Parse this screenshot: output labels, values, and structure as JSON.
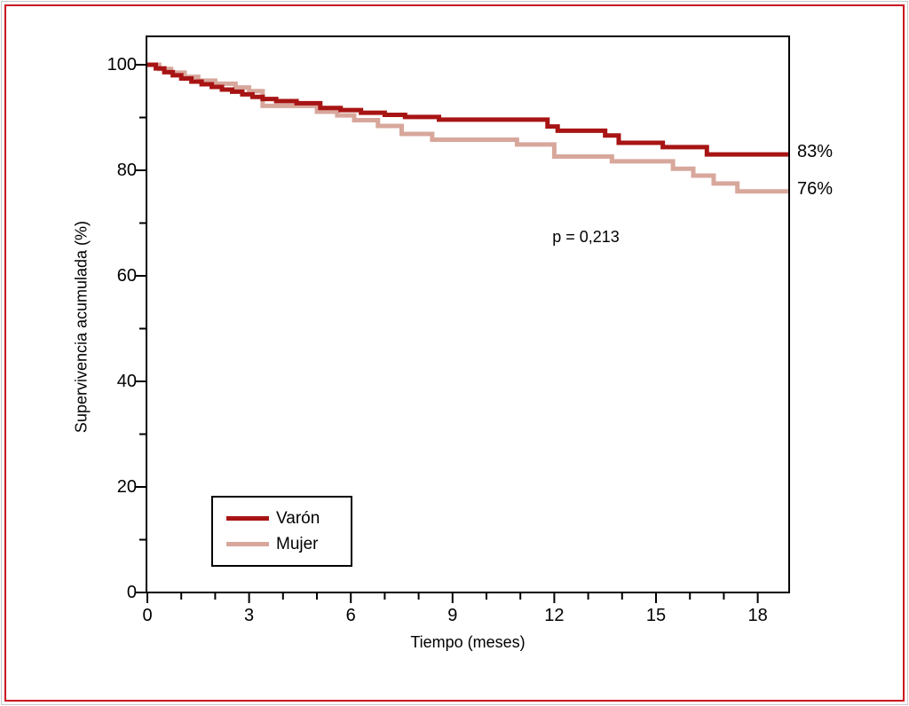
{
  "figure": {
    "outer_border_color": "#cb1020",
    "outer_hairline_color": "#c9c9c9",
    "background_color": "#ffffff",
    "axis_color": "#000000"
  },
  "chart_data": {
    "type": "line",
    "subtype": "step-survival-curve",
    "title": "",
    "xlabel": "Tiempo (meses)",
    "ylabel": "Supervivencia acumulada (%)",
    "xlim": [
      0,
      18.9
    ],
    "ylim": [
      0,
      105.4
    ],
    "x_ticks": [
      0,
      3,
      6,
      9,
      12,
      15,
      18
    ],
    "x_minor_ticks": [
      1,
      2,
      4,
      5,
      7,
      8,
      10,
      11,
      13,
      14,
      16,
      17
    ],
    "y_ticks": [
      0,
      20,
      40,
      60,
      80,
      100
    ],
    "y_minor_ticks": [
      10,
      30,
      50,
      70,
      90
    ],
    "grid": false,
    "legend_position": "lower-left",
    "annotations": [
      {
        "id": "p_value",
        "text": "p = 0,213"
      }
    ],
    "series": [
      {
        "name": "Varón",
        "color": "#a81414",
        "end_label": "83%",
        "end_value": 83,
        "points": [
          [
            0,
            100
          ],
          [
            0.25,
            99.3
          ],
          [
            0.5,
            98.6
          ],
          [
            0.75,
            98.0
          ],
          [
            1.0,
            97.4
          ],
          [
            1.3,
            96.8
          ],
          [
            1.6,
            96.3
          ],
          [
            1.9,
            95.8
          ],
          [
            2.2,
            95.3
          ],
          [
            2.5,
            94.9
          ],
          [
            2.8,
            94.4
          ],
          [
            3.1,
            93.9
          ],
          [
            3.4,
            93.5
          ],
          [
            3.8,
            93.1
          ],
          [
            4.4,
            92.7
          ],
          [
            5.1,
            91.8
          ],
          [
            5.7,
            91.4
          ],
          [
            6.3,
            90.9
          ],
          [
            7.0,
            90.5
          ],
          [
            7.6,
            90.1
          ],
          [
            8.6,
            89.6
          ],
          [
            11.8,
            88.3
          ],
          [
            12.1,
            87.5
          ],
          [
            13.5,
            86.6
          ],
          [
            13.9,
            85.2
          ],
          [
            15.2,
            84.4
          ],
          [
            16.5,
            83.0
          ]
        ]
      },
      {
        "name": "Mujer",
        "color": "#d8a79c",
        "end_label": "76%",
        "end_value": 76,
        "points": [
          [
            0,
            100
          ],
          [
            0.35,
            99.2
          ],
          [
            0.7,
            98.5
          ],
          [
            1.1,
            97.7
          ],
          [
            1.5,
            97.0
          ],
          [
            2.0,
            96.4
          ],
          [
            2.6,
            95.7
          ],
          [
            3.0,
            95.0
          ],
          [
            3.4,
            92.2
          ],
          [
            5.0,
            91.1
          ],
          [
            5.6,
            90.4
          ],
          [
            6.1,
            89.5
          ],
          [
            6.8,
            88.4
          ],
          [
            7.5,
            86.9
          ],
          [
            8.4,
            85.8
          ],
          [
            10.9,
            84.9
          ],
          [
            12.0,
            82.6
          ],
          [
            13.7,
            81.7
          ],
          [
            15.5,
            80.3
          ],
          [
            16.1,
            79.0
          ],
          [
            16.7,
            77.5
          ],
          [
            17.4,
            76.0
          ]
        ]
      }
    ]
  }
}
